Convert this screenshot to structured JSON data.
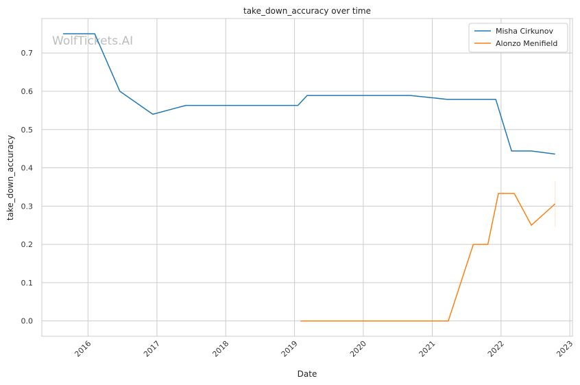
{
  "chart_data": {
    "type": "line",
    "title": "take_down_accuracy over time",
    "xlabel": "Date",
    "ylabel": "take_down_accuracy",
    "watermark": "WolfTickets.AI",
    "xlim": [
      "2015-05-01",
      "2023-01-15"
    ],
    "ylim": [
      -0.04,
      0.79
    ],
    "x_ticks": [
      "2016",
      "2017",
      "2018",
      "2019",
      "2020",
      "2021",
      "2022",
      "2023"
    ],
    "y_ticks": [
      "0.0",
      "0.1",
      "0.2",
      "0.3",
      "0.4",
      "0.5",
      "0.6",
      "0.7"
    ],
    "grid": true,
    "legend_position": "top-right",
    "series": [
      {
        "name": "Misha Cirkunov",
        "color": "#1f77b4",
        "points": [
          [
            "2015-08-22",
            0.75
          ],
          [
            "2016-02-06",
            0.75
          ],
          [
            "2016-06-18",
            0.6
          ],
          [
            "2016-12-10",
            0.54
          ],
          [
            "2017-06-03",
            0.563
          ],
          [
            "2019-01-19",
            0.563
          ],
          [
            "2019-03-09",
            0.589
          ],
          [
            "2020-09-05",
            0.589
          ],
          [
            "2021-03-20",
            0.579
          ],
          [
            "2021-12-04",
            0.579
          ],
          [
            "2022-02-26",
            0.444
          ],
          [
            "2022-06-11",
            0.444
          ],
          [
            "2022-10-15",
            0.436
          ]
        ]
      },
      {
        "name": "Alonzo Menifield",
        "color": "#ff7f0e",
        "points": [
          [
            "2019-02-02",
            0.0
          ],
          [
            "2021-03-27",
            0.0
          ],
          [
            "2021-08-07",
            0.2
          ],
          [
            "2021-10-23",
            0.2
          ],
          [
            "2021-12-18",
            0.333
          ],
          [
            "2022-03-12",
            0.333
          ],
          [
            "2022-06-11",
            0.25
          ],
          [
            "2022-10-15",
            0.306
          ]
        ]
      }
    ]
  }
}
